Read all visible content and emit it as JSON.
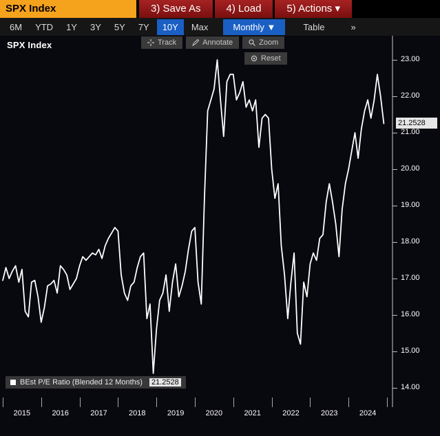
{
  "header": {
    "ticker": "SPX Index",
    "menu_items": [
      {
        "id": "save-as-button",
        "label": "3) Save As"
      },
      {
        "id": "load-button",
        "label": "4) Load"
      },
      {
        "id": "actions-button",
        "label": "5) Actions ▾"
      }
    ]
  },
  "toolbar": {
    "range_tabs": [
      "6M",
      "YTD",
      "1Y",
      "3Y",
      "5Y",
      "7Y",
      "10Y",
      "Max"
    ],
    "selected_range": "10Y",
    "period_label": "Monthly ▼",
    "table_label": "Table",
    "overflow_label": "»"
  },
  "chart": {
    "title": "SPX Index",
    "tools": {
      "track": "Track",
      "annotate": "Annotate",
      "zoom": "Zoom",
      "reset": "Reset"
    },
    "legend": {
      "label": "BEst P/E Ratio (Blended 12 Months)",
      "value": "21.2528"
    },
    "last_value_badge": "21.2528",
    "colors": {
      "amber": "#F5A21D",
      "menu_red": "#8E1616",
      "accent_blue": "#1A5FC4",
      "line": "#FFFFFF",
      "panel_bg": "#08080F",
      "badge_bg": "#E6E6E6"
    }
  },
  "chart_data": {
    "type": "line",
    "title": "SPX Index — BEst P/E Ratio (Blended 12 Months)",
    "series_name": "BEst P/E Ratio (Blended 12 Months)",
    "frequency": "monthly",
    "x_start": 2015.0,
    "x_end": 2024.9167,
    "xticks": [
      "2015",
      "2016",
      "2017",
      "2018",
      "2019",
      "2020",
      "2021",
      "2022",
      "2023",
      "2024"
    ],
    "yticks": [
      23,
      22,
      21,
      20,
      19,
      18,
      17,
      16,
      15,
      14
    ],
    "ylim": [
      14,
      23
    ],
    "grid": false,
    "legend_position": "bottom-left",
    "line_color": "#FFFFFF",
    "last_value": 21.2528,
    "values": [
      16.95,
      17.3,
      17.0,
      17.2,
      17.35,
      16.9,
      17.25,
      16.1,
      15.95,
      16.9,
      16.95,
      16.5,
      15.8,
      16.2,
      16.8,
      16.85,
      16.95,
      16.6,
      17.35,
      17.25,
      17.1,
      16.7,
      16.85,
      17.0,
      17.35,
      17.6,
      17.5,
      17.6,
      17.7,
      17.65,
      17.8,
      17.55,
      17.9,
      18.1,
      18.25,
      18.4,
      18.3,
      17.1,
      16.6,
      16.4,
      16.8,
      16.9,
      17.3,
      17.6,
      17.7,
      15.9,
      16.3,
      14.4,
      15.6,
      16.4,
      16.6,
      17.1,
      16.1,
      16.9,
      17.4,
      16.5,
      16.8,
      17.2,
      17.8,
      18.3,
      18.4,
      16.9,
      16.3,
      19.2,
      21.6,
      21.9,
      22.2,
      23.0,
      21.9,
      20.9,
      22.4,
      22.6,
      22.6,
      21.9,
      22.1,
      22.4,
      21.7,
      21.9,
      21.6,
      21.9,
      20.6,
      21.4,
      21.5,
      21.4,
      20.0,
      19.2,
      19.6,
      17.9,
      17.1,
      15.9,
      16.9,
      17.7,
      15.5,
      15.2,
      16.9,
      16.5,
      17.4,
      17.7,
      17.5,
      18.1,
      18.2,
      19.1,
      19.6,
      19.1,
      18.5,
      17.6,
      18.9,
      19.6,
      20.0,
      20.5,
      21.0,
      20.3,
      21.1,
      21.6,
      21.9,
      21.4,
      21.9,
      22.6,
      22.0,
      21.2528
    ]
  }
}
